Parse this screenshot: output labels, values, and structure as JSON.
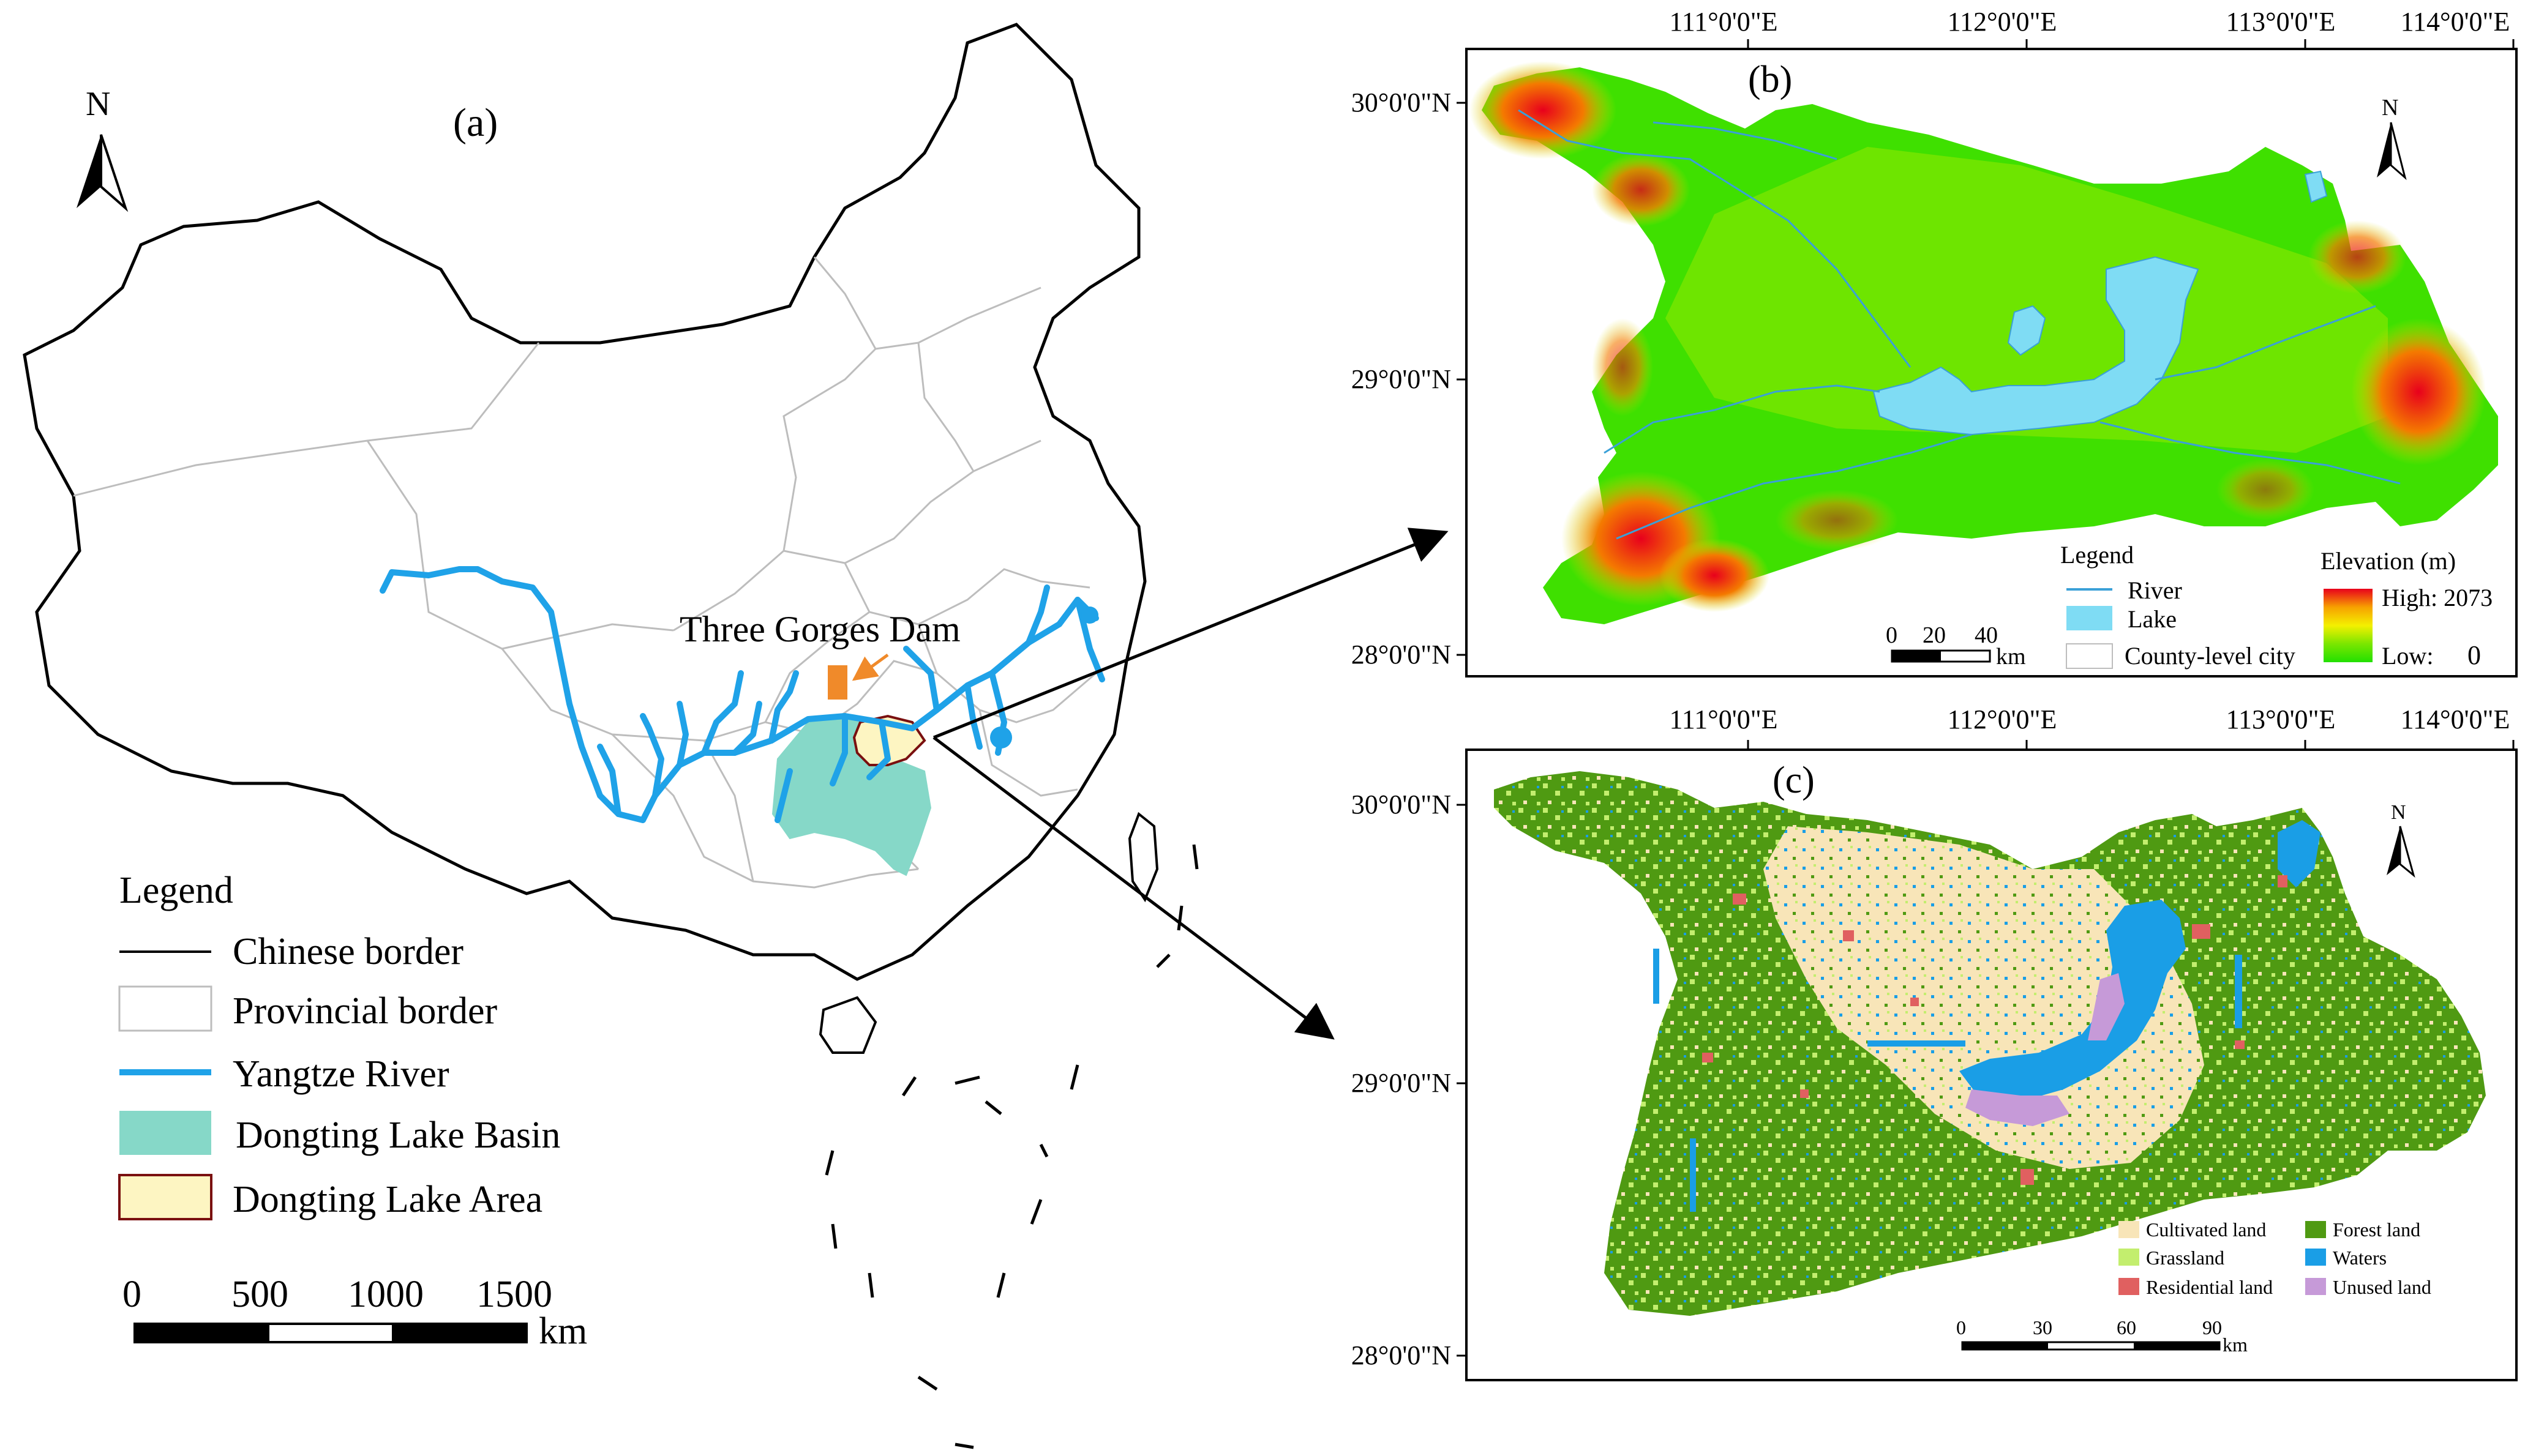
{
  "panel_a": {
    "label": "(a)",
    "north": "N",
    "dam_label": "Three Gorges Dam",
    "legend": {
      "title": "Legend",
      "items": [
        {
          "label": "Chinese border",
          "symbol": "line",
          "color": "#000000"
        },
        {
          "label": "Provincial border",
          "symbol": "box",
          "color": "#ffffff",
          "stroke": "#bdbdbd"
        },
        {
          "label": "Yangtze River",
          "symbol": "thick-line",
          "color": "#1fa2e8"
        },
        {
          "label": "Dongting Lake Basin",
          "symbol": "box",
          "color": "#86d8c8",
          "stroke": "#86d8c8"
        },
        {
          "label": "Dongting Lake Area",
          "symbol": "box",
          "color": "#fdf5c2",
          "stroke": "#7a1010"
        }
      ]
    },
    "scale": {
      "ticks": [
        "0",
        "500",
        "1000",
        "1500"
      ],
      "unit": "km"
    }
  },
  "panel_b": {
    "label": "(b)",
    "north": "N",
    "lon_labels": [
      "111°0'0\"E",
      "112°0'0\"E",
      "113°0'0\"E",
      "114°0'0\"E"
    ],
    "lat_labels": [
      "30°0'0\"N",
      "29°0'0\"N",
      "28°0'0\"N"
    ],
    "legend": {
      "title": "Legend",
      "items": [
        {
          "label": "River",
          "symbol": "line",
          "color": "#3aa0d8"
        },
        {
          "label": "Lake",
          "symbol": "box",
          "color": "#7fdcf4"
        },
        {
          "label": "County-level city",
          "symbol": "box",
          "color": "#ffffff"
        }
      ]
    },
    "elevation": {
      "title": "Elevation (m)",
      "high": "High: 2073",
      "low_label": "Low:",
      "low_value": "0",
      "colors": [
        "#e8001c",
        "#f7a100",
        "#f4f000",
        "#7be600",
        "#22e000"
      ]
    },
    "scale": {
      "ticks": [
        "0",
        "20",
        "40"
      ],
      "unit": "km"
    }
  },
  "panel_c": {
    "label": "(c)",
    "north": "N",
    "lon_labels": [
      "111°0'0\"E",
      "112°0'0\"E",
      "113°0'0\"E",
      "114°0'0\"E"
    ],
    "lat_labels": [
      "30°0'0\"N",
      "29°0'0\"N",
      "28°0'0\"N"
    ],
    "legend": [
      {
        "label": "Cultivated land",
        "color": "#f8e5b8"
      },
      {
        "label": "Forest land",
        "color": "#4f9a12"
      },
      {
        "label": "Grassland",
        "color": "#c3ee6e"
      },
      {
        "label": "Waters",
        "color": "#1a9ee6"
      },
      {
        "label": "Residential land",
        "color": "#e06060"
      },
      {
        "label": "Unused land",
        "color": "#c69ad8"
      }
    ],
    "scale": {
      "ticks": [
        "0",
        "30",
        "60",
        "90"
      ],
      "unit": "km"
    }
  }
}
